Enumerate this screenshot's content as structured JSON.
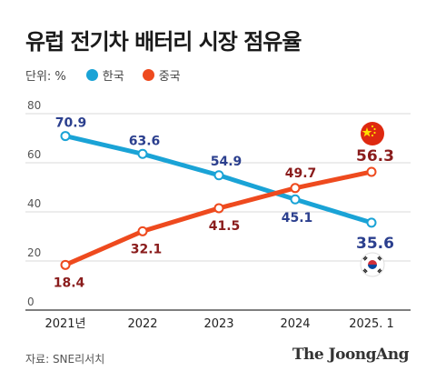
{
  "title": "유럽 전기차 배터리 시장 점유율",
  "legend": {
    "unit_label": "단위: %",
    "items": [
      {
        "label": "한국",
        "color": "#1aa3d6"
      },
      {
        "label": "중국",
        "color": "#ee4a1e"
      }
    ]
  },
  "chart_data": {
    "type": "line",
    "title": "유럽 전기차 배터리 시장 점유율",
    "categories": [
      "2021년",
      "2022",
      "2023",
      "2024",
      "2025. 1"
    ],
    "series": [
      {
        "name": "한국",
        "color": "#1aa3d6",
        "label_color": "#2b3f8e",
        "values": [
          70.9,
          63.6,
          54.9,
          45.1,
          35.6
        ],
        "label_texts": [
          "70.9",
          "63.6",
          "54.9",
          "45.1",
          "35.6"
        ]
      },
      {
        "name": "중국",
        "color": "#ee4a1e",
        "label_color": "#8a1c1c",
        "values": [
          18.4,
          32.1,
          41.5,
          49.7,
          56.3
        ],
        "label_texts": [
          "18.4",
          "32.1",
          "41.5",
          "49.7",
          "56.3"
        ]
      }
    ],
    "yticks": [
      "0",
      "20",
      "40",
      "60",
      "80"
    ],
    "ylim": [
      0,
      80
    ],
    "grid": true,
    "legend_position": "top-left"
  },
  "source": "자료: SNE리서치",
  "brand": "The JoongAng"
}
